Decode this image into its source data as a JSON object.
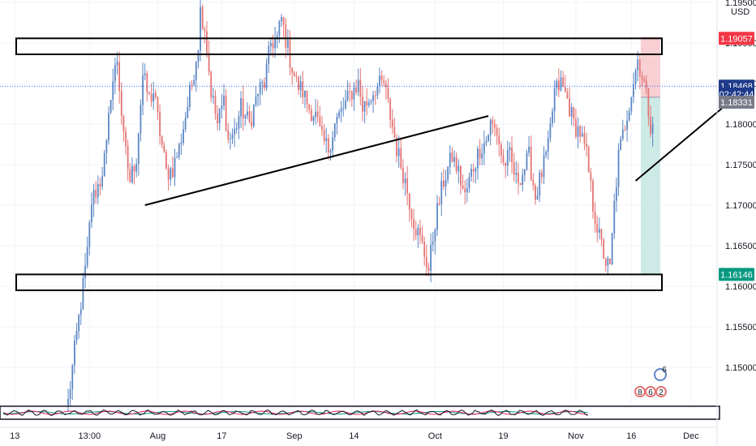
{
  "chart_data": {
    "type": "candlestick",
    "currency": "USD",
    "ylim": [
      1.1425,
      1.196
    ],
    "y_ticks": [
      "1.19500",
      "1.19000",
      "1.18500",
      "1.18000",
      "1.17500",
      "1.17000",
      "1.16500",
      "1.16000",
      "1.15500",
      "1.15000"
    ],
    "y_tick_values": [
      1.195,
      1.19,
      1.185,
      1.18,
      1.175,
      1.17,
      1.165,
      1.16,
      1.155,
      1.15
    ],
    "x_ticks": [
      "13",
      "13:00",
      "Aug",
      "17",
      "Sep",
      "14",
      "Oct",
      "19",
      "Nov",
      "16",
      "Dec"
    ],
    "x_tick_index": [
      -25,
      10,
      42,
      72,
      106,
      134,
      172,
      204,
      238,
      264,
      292
    ],
    "bars": 275,
    "price_path": [
      [
        0,
        1.1457
      ],
      [
        3,
        1.152
      ],
      [
        6,
        1.158
      ],
      [
        9,
        1.164
      ],
      [
        11,
        1.1705
      ],
      [
        15,
        1.173
      ],
      [
        18,
        1.177
      ],
      [
        20,
        1.184
      ],
      [
        23,
        1.188
      ],
      [
        26,
        1.178
      ],
      [
        29,
        1.173
      ],
      [
        32,
        1.176
      ],
      [
        35,
        1.186
      ],
      [
        38,
        1.183
      ],
      [
        40,
        1.184
      ],
      [
        43,
        1.179
      ],
      [
        46,
        1.174
      ],
      [
        49,
        1.1745
      ],
      [
        52,
        1.177
      ],
      [
        55,
        1.181
      ],
      [
        58,
        1.185
      ],
      [
        61,
        1.19
      ],
      [
        62,
        1.194
      ],
      [
        64,
        1.192
      ],
      [
        67,
        1.184
      ],
      [
        70,
        1.18
      ],
      [
        73,
        1.183
      ],
      [
        75,
        1.178
      ],
      [
        78,
        1.179
      ],
      [
        81,
        1.182
      ],
      [
        85,
        1.18
      ],
      [
        89,
        1.184
      ],
      [
        92,
        1.185
      ],
      [
        95,
        1.19
      ],
      [
        98,
        1.1905
      ],
      [
        100,
        1.193
      ],
      [
        104,
        1.188
      ],
      [
        107,
        1.185
      ],
      [
        110,
        1.184
      ],
      [
        113,
        1.182
      ],
      [
        116,
        1.181
      ],
      [
        119,
        1.178
      ],
      [
        122,
        1.177
      ],
      [
        125,
        1.18
      ],
      [
        129,
        1.182
      ],
      [
        133,
        1.184
      ],
      [
        136,
        1.185
      ],
      [
        138,
        1.182
      ],
      [
        141,
        1.183
      ],
      [
        144,
        1.1845
      ],
      [
        148,
        1.185
      ],
      [
        151,
        1.181
      ],
      [
        154,
        1.177
      ],
      [
        158,
        1.173
      ],
      [
        162,
        1.168
      ],
      [
        166,
        1.165
      ],
      [
        169,
        1.162
      ],
      [
        172,
        1.168
      ],
      [
        176,
        1.173
      ],
      [
        180,
        1.176
      ],
      [
        183,
        1.174
      ],
      [
        186,
        1.171
      ],
      [
        189,
        1.174
      ],
      [
        193,
        1.177
      ],
      [
        196,
        1.178
      ],
      [
        198,
        1.18
      ],
      [
        201,
        1.179
      ],
      [
        204,
        1.175
      ],
      [
        207,
        1.176
      ],
      [
        210,
        1.173
      ],
      [
        213,
        1.174
      ],
      [
        216,
        1.176
      ],
      [
        219,
        1.171
      ],
      [
        222,
        1.174
      ],
      [
        225,
        1.177
      ],
      [
        228,
        1.184
      ],
      [
        231,
        1.185
      ],
      [
        234,
        1.183
      ],
      [
        237,
        1.18
      ],
      [
        240,
        1.179
      ],
      [
        243,
        1.176
      ],
      [
        246,
        1.17
      ],
      [
        249,
        1.166
      ],
      [
        252,
        1.163
      ],
      [
        254,
        1.162
      ],
      [
        256,
        1.17
      ],
      [
        258,
        1.176
      ],
      [
        261,
        1.18
      ],
      [
        264,
        1.184
      ],
      [
        267,
        1.188
      ],
      [
        270,
        1.185
      ],
      [
        273,
        1.18
      ],
      [
        276,
        1.182
      ],
      [
        279,
        1.18
      ],
      [
        282,
        1.179
      ],
      [
        285,
        1.182
      ],
      [
        288,
        1.186
      ],
      [
        291,
        1.184
      ],
      [
        294,
        1.188
      ],
      [
        297,
        1.187
      ],
      [
        300,
        1.186
      ],
      [
        303,
        1.188
      ],
      [
        306,
        1.185
      ],
      [
        309,
        1.188
      ],
      [
        312,
        1.187
      ],
      [
        314,
        1.189
      ],
      [
        316,
        1.185
      ],
      [
        318,
        1.184
      ],
      [
        320,
        1.188
      ],
      [
        322,
        1.186
      ],
      [
        324,
        1.185
      ]
    ],
    "price_path_dates_note": "",
    "zones": [
      {
        "name": "resistance-zone",
        "y_top": 1.19057,
        "y_bottom": 1.1886
      },
      {
        "name": "support-zone",
        "y_top": 1.16146,
        "y_bottom": 1.1595
      }
    ],
    "trendlines": [
      {
        "name": "trendline-mid",
        "from": [
          36,
          1.17
        ],
        "to": [
          197,
          1.181
        ]
      },
      {
        "name": "trendline-right",
        "from": [
          266,
          1.173
        ],
        "to": [
          318,
          1.1845
        ]
      }
    ],
    "position": {
      "entry": 1.18331,
      "stop": 1.19057,
      "target": 1.16146
    },
    "price_tags": [
      {
        "label": "1.19057",
        "value": 1.19057,
        "color": "#f23645"
      },
      {
        "label": "1.18468",
        "value": 1.18468,
        "color": "#1e3a8a"
      },
      {
        "label": "02:42:44",
        "value": 1.1837,
        "color": "#1e3a8a"
      },
      {
        "label": "1.18331",
        "value": 1.1827,
        "color": "#787b86"
      },
      {
        "label": "1.16146",
        "value": 1.16146,
        "color": "#089981"
      }
    ],
    "current_price": 1.18468,
    "events": [
      {
        "name": "event-6",
        "label": "6"
      },
      {
        "name": "event-row",
        "labels": [
          "8",
          "6",
          "2"
        ]
      }
    ],
    "colors": {
      "up": "#5b86c5",
      "down": "#e57373",
      "stop_zone": "#f8cfd2",
      "target_zone": "#cdeae6",
      "grid": "#f0f3fa",
      "current_line": "#2962ff"
    }
  }
}
